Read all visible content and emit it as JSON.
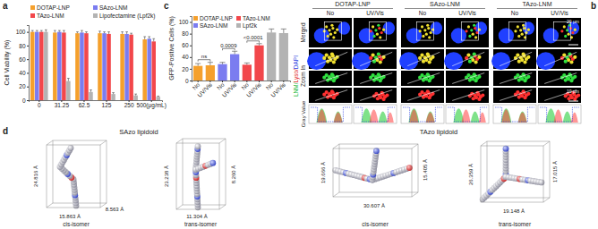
{
  "panel_labels": [
    "a",
    "b",
    "c",
    "d"
  ],
  "chart_data": [
    {
      "type": "bar",
      "y_label": "Cell Viability (%)",
      "categories": [
        "0",
        "31.25",
        "62.5",
        "125",
        "250",
        "500(μg/mL)"
      ],
      "series": [
        {
          "name": "DOTAP-LNP",
          "color": "#f5a02c",
          "values": [
            100,
            99,
            98,
            98,
            97,
            89
          ],
          "errors": [
            2,
            3,
            2,
            3,
            3,
            4
          ]
        },
        {
          "name": "SAzo-LNM",
          "color": "#7b7cf0",
          "values": [
            100,
            100,
            99,
            98,
            97,
            90
          ],
          "errors": [
            2,
            2,
            3,
            2,
            3,
            3
          ]
        },
        {
          "name": "TAzo-LNM",
          "color": "#f2474b",
          "values": [
            100,
            99,
            98,
            97,
            96,
            86
          ],
          "errors": [
            2,
            3,
            2,
            3,
            2,
            4
          ]
        },
        {
          "name": "Lipofectamine (Lpf2k)",
          "color": "#b3b3b3",
          "values": [
            100,
            28,
            12,
            9,
            7,
            5
          ],
          "errors": [
            3,
            4,
            3,
            2,
            2,
            1
          ]
        }
      ],
      "ylim": [
        0,
        110
      ],
      "yticks": [
        0,
        20,
        40,
        60,
        80,
        100
      ],
      "legend": "top"
    },
    {
      "type": "bar",
      "y_label": "GFP-Positive Cells (%)",
      "categories": [
        "No",
        "UV/Vis",
        "No",
        "UV/Vis",
        "No",
        "UV/Vis",
        "No",
        "UV/Vis"
      ],
      "series": [
        {
          "name": "DOTAP-LNP",
          "color": "#f5a02c",
          "values": [
            25,
            26,
            null,
            null,
            null,
            null,
            null,
            null
          ],
          "errors": [
            4,
            5,
            null,
            null,
            null,
            null,
            null,
            null
          ]
        },
        {
          "name": "SAzo-LNM",
          "color": "#7b7cf0",
          "values": [
            null,
            null,
            28,
            45,
            null,
            null,
            null,
            null
          ],
          "errors": [
            null,
            null,
            3,
            5,
            null,
            null,
            null,
            null
          ]
        },
        {
          "name": "TAzo-LNM",
          "color": "#f2474b",
          "values": [
            null,
            null,
            null,
            null,
            27,
            60,
            null,
            null
          ],
          "errors": [
            null,
            null,
            null,
            null,
            3,
            3,
            null,
            null
          ]
        },
        {
          "name": "Lpf2k",
          "color": "#b3b3b3",
          "values": [
            null,
            null,
            null,
            null,
            null,
            null,
            82,
            81
          ],
          "errors": [
            null,
            null,
            null,
            null,
            null,
            null,
            6,
            7
          ]
        }
      ],
      "annotations": [
        "ns",
        "0.0009",
        "<0.0001"
      ],
      "ylim": [
        0,
        110
      ],
      "yticks": [
        0,
        20,
        40,
        60,
        80,
        100
      ],
      "legend": "top-left"
    }
  ],
  "panel_b": {
    "groups": [
      "DOTAP-LNP",
      "SAzo-LNM",
      "TAzo-LNM"
    ],
    "conditions": [
      "No",
      "UV/Vis"
    ],
    "rows": [
      "Merged",
      "Zoom In",
      "Gray Value"
    ],
    "channel_label": [
      {
        "text": "LNM/",
        "color": "#22b83a"
      },
      {
        "text": "Lyso/",
        "color": "#e02424"
      },
      {
        "text": "DAPI",
        "color": "#2a3ee0"
      }
    ],
    "scale_bars": [
      "20 µm",
      "10 µm"
    ]
  },
  "panel_d": {
    "molecules": [
      {
        "name": "SAzo lipidoid",
        "isomers": [
          {
            "label": "cis-isomer",
            "dimensions": [
              "24.816 Å",
              "15.863 Å",
              "8.563 Å"
            ]
          },
          {
            "label": "trans-isomer",
            "dimensions": [
              "23.238 Å",
              "11.304 Å",
              "8.260 Å"
            ]
          }
        ]
      },
      {
        "name": "TAzo lipidoid",
        "isomers": [
          {
            "label": "cis-isomer",
            "dimensions": [
              "19.666 Å",
              "15.405 Å",
              "30.607 Å"
            ]
          },
          {
            "label": "trans-isomer",
            "dimensions": [
              "26.359 Å",
              "17.015 Å",
              "19.148 Å"
            ]
          }
        ]
      }
    ]
  }
}
